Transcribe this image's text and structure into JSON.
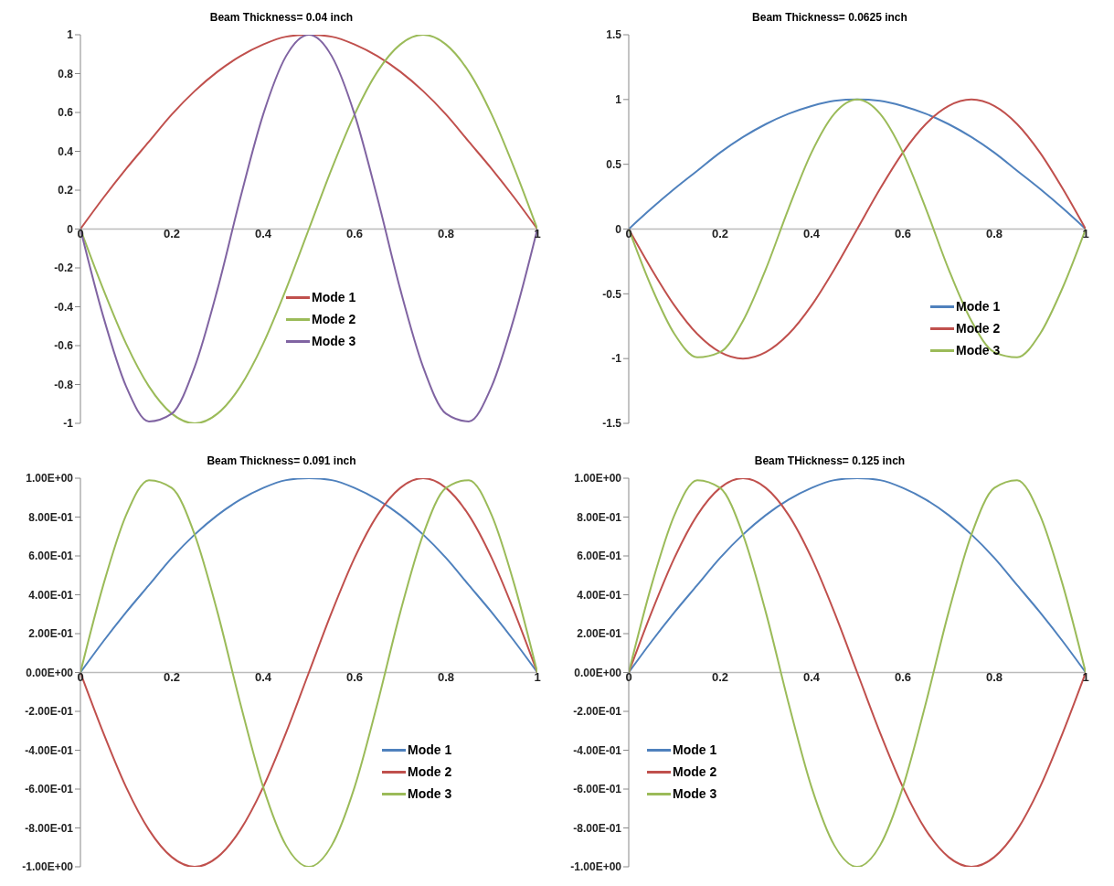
{
  "chart_data": [
    {
      "type": "line",
      "title": "Beam Thickness= 0.04 inch",
      "x": [
        0,
        0.05,
        0.1,
        0.15,
        0.2,
        0.25,
        0.3,
        0.35,
        0.4,
        0.45,
        0.5,
        0.55,
        0.6,
        0.65,
        0.7,
        0.75,
        0.8,
        0.85,
        0.9,
        0.95,
        1
      ],
      "xlim": [
        0,
        1
      ],
      "xticks": [
        0,
        0.2,
        0.4,
        0.6,
        0.8,
        1
      ],
      "ylim": [
        -1,
        1
      ],
      "yticks": [
        -1,
        -0.8,
        -0.6,
        -0.4,
        -0.2,
        0,
        0.2,
        0.4,
        0.6,
        0.8,
        1
      ],
      "legend": "bottom",
      "marker": "none",
      "series": [
        {
          "name": "Mode 1",
          "color": "#c0504d",
          "values": [
            0,
            0.16,
            0.31,
            0.45,
            0.59,
            0.71,
            0.81,
            0.89,
            0.95,
            0.99,
            1,
            0.99,
            0.95,
            0.89,
            0.81,
            0.71,
            0.59,
            0.45,
            0.31,
            0.16,
            0
          ]
        },
        {
          "name": "Mode 2",
          "color": "#9bbb59",
          "values": [
            0,
            -0.31,
            -0.59,
            -0.81,
            -0.95,
            -1,
            -0.95,
            -0.81,
            -0.59,
            -0.31,
            0,
            0.31,
            0.59,
            0.81,
            0.95,
            1,
            0.95,
            0.81,
            0.59,
            0.31,
            0
          ]
        },
        {
          "name": "Mode 3",
          "color": "#8064a2",
          "values": [
            0,
            -0.45,
            -0.81,
            -0.99,
            -0.95,
            -0.71,
            -0.31,
            0.16,
            0.59,
            0.89,
            1,
            0.89,
            0.59,
            0.16,
            -0.31,
            -0.71,
            -0.95,
            -0.99,
            -0.81,
            -0.45,
            0
          ]
        }
      ]
    },
    {
      "type": "line",
      "title": "Beam Thickness= 0.0625 inch",
      "x": [
        0,
        0.05,
        0.1,
        0.15,
        0.2,
        0.25,
        0.3,
        0.35,
        0.4,
        0.45,
        0.5,
        0.55,
        0.6,
        0.65,
        0.7,
        0.75,
        0.8,
        0.85,
        0.9,
        0.95,
        1
      ],
      "xlim": [
        0,
        1
      ],
      "xticks": [
        0,
        0.2,
        0.4,
        0.6,
        0.8,
        1
      ],
      "ylim": [
        -1.5,
        1.5
      ],
      "yticks": [
        -1.5,
        -1,
        -0.5,
        0,
        0.5,
        1,
        1.5
      ],
      "legend": "bottom right",
      "marker": "none",
      "series": [
        {
          "name": "Mode 1",
          "color": "#4f81bd",
          "values": [
            0,
            0.16,
            0.31,
            0.45,
            0.59,
            0.71,
            0.81,
            0.89,
            0.95,
            0.99,
            1,
            0.99,
            0.95,
            0.89,
            0.81,
            0.71,
            0.59,
            0.45,
            0.31,
            0.16,
            0
          ]
        },
        {
          "name": "Mode 2",
          "color": "#c0504d",
          "values": [
            0,
            -0.31,
            -0.59,
            -0.81,
            -0.95,
            -1,
            -0.95,
            -0.81,
            -0.59,
            -0.31,
            0,
            0.31,
            0.59,
            0.81,
            0.95,
            1,
            0.95,
            0.81,
            0.59,
            0.31,
            0
          ]
        },
        {
          "name": "Mode 3",
          "color": "#9bbb59",
          "values": [
            0,
            -0.45,
            -0.81,
            -0.99,
            -0.95,
            -0.71,
            -0.31,
            0.16,
            0.59,
            0.89,
            1,
            0.89,
            0.59,
            0.16,
            -0.31,
            -0.71,
            -0.95,
            -0.99,
            -0.81,
            -0.45,
            0
          ]
        }
      ]
    },
    {
      "type": "line",
      "title": "Beam Thickness= 0.091 inch",
      "x": [
        0,
        0.05,
        0.1,
        0.15,
        0.2,
        0.25,
        0.3,
        0.35,
        0.4,
        0.45,
        0.5,
        0.55,
        0.6,
        0.65,
        0.7,
        0.75,
        0.8,
        0.85,
        0.9,
        0.95,
        1
      ],
      "xlim": [
        0,
        1
      ],
      "xticks": [
        0,
        0.2,
        0.4,
        0.6,
        0.8,
        1
      ],
      "ylim": [
        -1,
        1
      ],
      "yticks": [
        {
          "value": -1,
          "label": "-1.00E+00"
        },
        {
          "value": -0.8,
          "label": "-8.00E-01"
        },
        {
          "value": -0.6,
          "label": "-6.00E-01"
        },
        {
          "value": -0.4,
          "label": "-4.00E-01"
        },
        {
          "value": -0.2,
          "label": "-2.00E-01"
        },
        {
          "value": 0,
          "label": "0.00E+00"
        },
        {
          "value": 0.2,
          "label": "2.00E-01"
        },
        {
          "value": 0.4,
          "label": "4.00E-01"
        },
        {
          "value": 0.6,
          "label": "6.00E-01"
        },
        {
          "value": 0.8,
          "label": "8.00E-01"
        },
        {
          "value": 1,
          "label": "1.00E+00"
        }
      ],
      "legend": "bottom right",
      "marker": "none",
      "series": [
        {
          "name": "Mode 1",
          "color": "#4f81bd",
          "values": [
            0,
            0.16,
            0.31,
            0.45,
            0.59,
            0.71,
            0.81,
            0.89,
            0.95,
            0.99,
            1,
            0.99,
            0.95,
            0.89,
            0.81,
            0.71,
            0.59,
            0.45,
            0.31,
            0.16,
            0
          ]
        },
        {
          "name": "Mode 2",
          "color": "#c0504d",
          "values": [
            0,
            -0.31,
            -0.59,
            -0.81,
            -0.95,
            -1,
            -0.95,
            -0.81,
            -0.59,
            -0.31,
            0,
            0.31,
            0.59,
            0.81,
            0.95,
            1,
            0.95,
            0.81,
            0.59,
            0.31,
            0
          ]
        },
        {
          "name": "Mode 3",
          "color": "#9bbb59",
          "values": [
            0,
            0.45,
            0.81,
            0.99,
            0.95,
            0.71,
            0.31,
            -0.16,
            -0.59,
            -0.89,
            -1,
            -0.89,
            -0.59,
            -0.16,
            0.31,
            0.71,
            0.95,
            0.99,
            0.81,
            0.45,
            0
          ]
        }
      ]
    },
    {
      "type": "line",
      "title": "Beam THickness= 0.125 inch",
      "x": [
        0,
        0.05,
        0.1,
        0.15,
        0.2,
        0.25,
        0.3,
        0.35,
        0.4,
        0.45,
        0.5,
        0.55,
        0.6,
        0.65,
        0.7,
        0.75,
        0.8,
        0.85,
        0.9,
        0.95,
        1
      ],
      "xlim": [
        0,
        1
      ],
      "xticks": [
        0,
        0.2,
        0.4,
        0.6,
        0.8,
        1
      ],
      "ylim": [
        -1,
        1
      ],
      "yticks": [
        {
          "value": -1,
          "label": "-1.00E+00"
        },
        {
          "value": -0.8,
          "label": "-8.00E-01"
        },
        {
          "value": -0.6,
          "label": "-6.00E-01"
        },
        {
          "value": -0.4,
          "label": "-4.00E-01"
        },
        {
          "value": -0.2,
          "label": "-2.00E-01"
        },
        {
          "value": 0,
          "label": "0.00E+00"
        },
        {
          "value": 0.2,
          "label": "2.00E-01"
        },
        {
          "value": 0.4,
          "label": "4.00E-01"
        },
        {
          "value": 0.6,
          "label": "6.00E-01"
        },
        {
          "value": 0.8,
          "label": "8.00E-01"
        },
        {
          "value": 1,
          "label": "1.00E+00"
        }
      ],
      "legend": "bottom left",
      "marker": "none",
      "series": [
        {
          "name": "Mode 1",
          "color": "#4f81bd",
          "values": [
            0,
            0.16,
            0.31,
            0.45,
            0.59,
            0.71,
            0.81,
            0.89,
            0.95,
            0.99,
            1,
            0.99,
            0.95,
            0.89,
            0.81,
            0.71,
            0.59,
            0.45,
            0.31,
            0.16,
            0
          ]
        },
        {
          "name": "Mode 2",
          "color": "#c0504d",
          "values": [
            0,
            0.31,
            0.59,
            0.81,
            0.95,
            1,
            0.95,
            0.81,
            0.59,
            0.31,
            0,
            -0.31,
            -0.59,
            -0.81,
            -0.95,
            -1,
            -0.95,
            -0.81,
            -0.59,
            -0.31,
            0
          ]
        },
        {
          "name": "Mode 3",
          "color": "#9bbb59",
          "values": [
            0,
            0.45,
            0.81,
            0.99,
            0.95,
            0.71,
            0.31,
            -0.16,
            -0.59,
            -0.89,
            -1,
            -0.89,
            -0.59,
            -0.16,
            0.31,
            0.71,
            0.95,
            0.99,
            0.81,
            0.45,
            0
          ]
        }
      ]
    }
  ]
}
